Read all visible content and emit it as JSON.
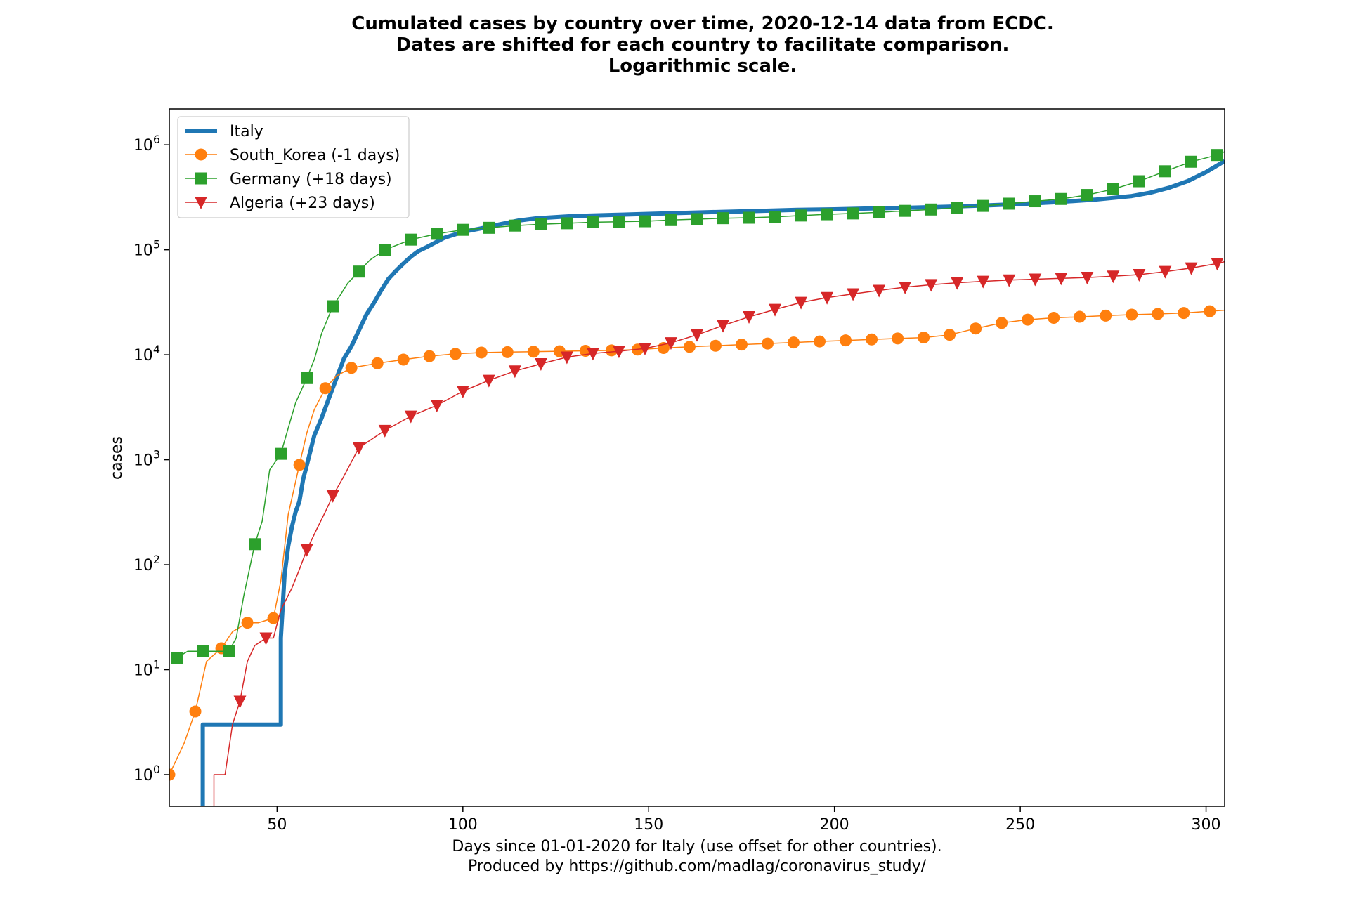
{
  "chart_data": {
    "type": "line",
    "title": [
      "Cumulated cases by country over time, 2020-12-14 data from ECDC.",
      "Dates are shifted for each country to facilitate comparison.",
      "Logarithmic scale."
    ],
    "xlabel": [
      "Days since 01-01-2020 for Italy (use offset for other countries).",
      "Produced by https://github.com/madlag/coronavirus_study/"
    ],
    "ylabel": "cases",
    "yscale": "log",
    "xlim": [
      21,
      305
    ],
    "ylim": [
      0.5,
      2200000
    ],
    "x_ticks": [
      50,
      100,
      150,
      200,
      250,
      300
    ],
    "y_ticks": [
      1,
      10,
      100,
      1000,
      10000,
      100000,
      1000000
    ],
    "y_tick_labels": [
      {
        "base": "10",
        "exp": "0"
      },
      {
        "base": "10",
        "exp": "1"
      },
      {
        "base": "10",
        "exp": "2"
      },
      {
        "base": "10",
        "exp": "3"
      },
      {
        "base": "10",
        "exp": "4"
      },
      {
        "base": "10",
        "exp": "5"
      },
      {
        "base": "10",
        "exp": "6"
      }
    ],
    "legend_position": "top-left",
    "series": [
      {
        "name": "Italy",
        "color": "#1f77b4",
        "marker": "none",
        "line_width": 6,
        "step": true,
        "x": [
          30,
          30,
          51,
          51,
          52,
          53,
          54,
          55,
          56,
          57,
          58,
          60,
          62,
          64,
          66,
          68,
          70,
          72,
          74,
          76,
          78,
          80,
          82,
          84,
          86,
          88,
          90,
          95,
          100,
          105,
          110,
          115,
          120,
          130,
          140,
          150,
          160,
          170,
          180,
          190,
          200,
          210,
          220,
          230,
          240,
          250,
          260,
          270,
          280,
          285,
          290,
          295,
          300,
          305
        ],
        "y": [
          0.2,
          3,
          3,
          20,
          80,
          150,
          230,
          320,
          400,
          650,
          888,
          1700,
          2500,
          3900,
          6000,
          9200,
          12000,
          17000,
          24000,
          31000,
          41000,
          53000,
          63000,
          74000,
          86000,
          97000,
          105000,
          130000,
          148000,
          160000,
          175000,
          190000,
          200000,
          210000,
          215000,
          220000,
          225000,
          230000,
          235000,
          240000,
          243000,
          248000,
          252000,
          257000,
          264000,
          273000,
          285000,
          300000,
          325000,
          350000,
          390000,
          450000,
          550000,
          700000
        ]
      },
      {
        "name": "South_Korea (-1 days)",
        "color": "#ff7f0e",
        "marker": "circle",
        "line_width": 1.5,
        "x": [
          21,
          25,
          28,
          31,
          35,
          38,
          42,
          45,
          49,
          51,
          53,
          56,
          58,
          60,
          63,
          66,
          70,
          77,
          84,
          91,
          98,
          105,
          112,
          119,
          126,
          133,
          140,
          147,
          154,
          161,
          168,
          175,
          182,
          189,
          196,
          203,
          210,
          217,
          224,
          231,
          238,
          245,
          252,
          259,
          266,
          273,
          280,
          287,
          294,
          301,
          305
        ],
        "y": [
          1,
          2,
          4,
          12,
          16,
          23,
          28,
          28,
          31,
          70,
          300,
          893,
          1800,
          3000,
          4800,
          6300,
          7500,
          8300,
          9000,
          9700,
          10200,
          10500,
          10600,
          10700,
          10800,
          10900,
          11000,
          11200,
          11600,
          11900,
          12200,
          12500,
          12800,
          13100,
          13400,
          13700,
          14000,
          14300,
          14600,
          15500,
          17800,
          20100,
          21600,
          22500,
          23000,
          23600,
          24100,
          24500,
          25000,
          26000,
          26600
        ],
        "marker_x": [
          21,
          28,
          35,
          42,
          49,
          56,
          63,
          70,
          77,
          84,
          91,
          98,
          105,
          112,
          119,
          126,
          133,
          140,
          147,
          154,
          161,
          168,
          175,
          182,
          189,
          196,
          203,
          210,
          217,
          224,
          231,
          238,
          245,
          252,
          259,
          266,
          273,
          280,
          287,
          294,
          301
        ],
        "marker_y": [
          1,
          4,
          16,
          28,
          31,
          893,
          4800,
          7500,
          8300,
          9000,
          9700,
          10200,
          10500,
          10600,
          10700,
          10800,
          10900,
          11000,
          11200,
          11600,
          11900,
          12200,
          12500,
          12800,
          13100,
          13400,
          13700,
          14000,
          14300,
          14600,
          15500,
          17800,
          20100,
          21600,
          22500,
          23000,
          23600,
          24100,
          24500,
          25000,
          26000
        ]
      },
      {
        "name": "Germany (+18 days)",
        "color": "#2ca02c",
        "marker": "square",
        "line_width": 1.5,
        "x": [
          23,
          26,
          30,
          33,
          37,
          39,
          41,
          44,
          46,
          48,
          51,
          53,
          55,
          58,
          60,
          62,
          65,
          67,
          69,
          72,
          75,
          79,
          86,
          93,
          100,
          107,
          114,
          121,
          128,
          135,
          142,
          149,
          156,
          163,
          170,
          177,
          184,
          191,
          198,
          205,
          212,
          219,
          226,
          233,
          240,
          247,
          254,
          261,
          268,
          275,
          282,
          289,
          296,
          303,
          305
        ],
        "y": [
          13,
          15,
          15,
          15,
          15,
          20,
          50,
          157,
          260,
          800,
          1139,
          2000,
          3500,
          6000,
          9000,
          16000,
          29000,
          37000,
          48000,
          62000,
          80000,
          100000,
          125000,
          142000,
          155000,
          162000,
          170000,
          175000,
          179000,
          183000,
          185000,
          187000,
          192000,
          196000,
          200000,
          202000,
          206000,
          212000,
          218000,
          222000,
          228000,
          235000,
          242000,
          252000,
          262000,
          275000,
          290000,
          305000,
          333000,
          378000,
          450000,
          560000,
          690000,
          800000,
          860000
        ],
        "marker_x": [
          23,
          30,
          37,
          44,
          51,
          58,
          65,
          72,
          79,
          86,
          93,
          100,
          107,
          114,
          121,
          128,
          135,
          142,
          149,
          156,
          163,
          170,
          177,
          184,
          191,
          198,
          205,
          212,
          219,
          226,
          233,
          240,
          247,
          254,
          261,
          268,
          275,
          282,
          289,
          296,
          303
        ],
        "marker_y": [
          13,
          15,
          15,
          157,
          1139,
          6000,
          29000,
          62000,
          100000,
          125000,
          142000,
          155000,
          162000,
          170000,
          175000,
          179000,
          183000,
          185000,
          187000,
          192000,
          196000,
          200000,
          202000,
          206000,
          212000,
          218000,
          222000,
          228000,
          235000,
          242000,
          252000,
          262000,
          275000,
          290000,
          305000,
          333000,
          378000,
          450000,
          560000,
          690000,
          800000
        ]
      },
      {
        "name": "Algeria (+23 days)",
        "color": "#d62728",
        "marker": "triangle-down",
        "line_width": 1.5,
        "x": [
          33,
          33,
          36,
          38,
          40,
          42,
          44,
          47,
          49,
          51,
          54,
          56,
          58,
          61,
          63,
          65,
          68,
          72,
          79,
          86,
          93,
          100,
          107,
          114,
          121,
          128,
          135,
          142,
          149,
          156,
          163,
          170,
          177,
          184,
          191,
          198,
          205,
          212,
          219,
          226,
          233,
          240,
          247,
          254,
          261,
          268,
          275,
          282,
          289,
          296,
          303,
          305
        ],
        "y": [
          0.2,
          1,
          1,
          3,
          5,
          12,
          17,
          20,
          20,
          37,
          60,
          90,
          139,
          230,
          320,
          454,
          700,
          1300,
          1900,
          2600,
          3300,
          4500,
          5700,
          7000,
          8200,
          9500,
          10300,
          10800,
          11500,
          13000,
          15500,
          19000,
          23000,
          27000,
          31500,
          35000,
          38000,
          41000,
          44000,
          46500,
          48500,
          50000,
          51500,
          52500,
          53500,
          54500,
          56000,
          58000,
          62000,
          67000,
          74000,
          77000
        ],
        "marker_x": [
          40,
          47,
          58,
          65,
          72,
          79,
          86,
          93,
          100,
          107,
          114,
          121,
          128,
          135,
          142,
          149,
          156,
          163,
          170,
          177,
          184,
          191,
          198,
          205,
          212,
          219,
          226,
          233,
          240,
          247,
          254,
          261,
          268,
          275,
          282,
          289,
          296,
          303
        ],
        "marker_y": [
          5,
          20,
          139,
          454,
          1300,
          1900,
          2600,
          3300,
          4500,
          5700,
          7000,
          8200,
          9500,
          10300,
          10800,
          11500,
          13000,
          15500,
          19000,
          23000,
          27000,
          31500,
          35000,
          38000,
          41000,
          44000,
          46500,
          48500,
          50000,
          51500,
          52500,
          53500,
          54500,
          56000,
          58000,
          62000,
          67000,
          74000
        ]
      }
    ]
  }
}
